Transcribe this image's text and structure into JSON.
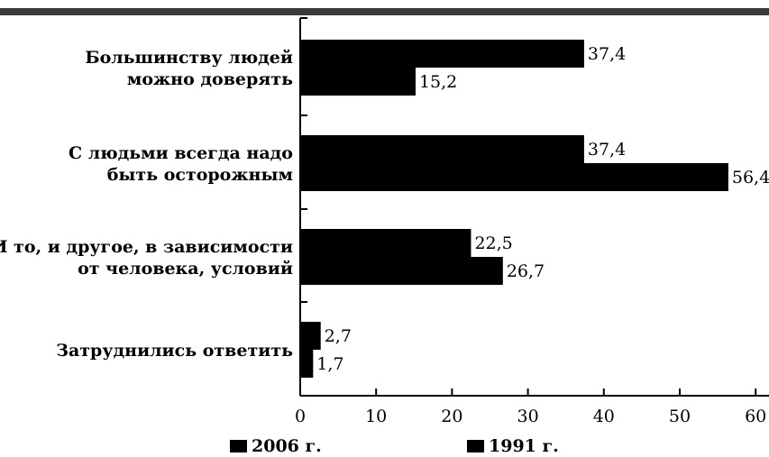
{
  "chart_data": {
    "type": "bar",
    "orientation": "horizontal",
    "categories": [
      [
        "Большинству людей",
        "можно доверять"
      ],
      [
        "С людьми всегда надо",
        "быть осторожным"
      ],
      [
        "И то, и другое, в зависимости",
        "от человека, условий"
      ],
      [
        "Затруднились ответить"
      ]
    ],
    "series": [
      {
        "name": "2006 г.",
        "values": [
          37.4,
          37.4,
          22.5,
          2.7
        ],
        "labels": [
          "37,4",
          "37,4",
          "22,5",
          "2,7"
        ],
        "color": "#000000"
      },
      {
        "name": "1991 г.",
        "values": [
          15.2,
          56.4,
          26.7,
          1.7
        ],
        "labels": [
          "15,2",
          "56,4",
          "26,7",
          "1,7"
        ],
        "color": "#000000"
      }
    ],
    "xlim": [
      0,
      60
    ],
    "xticks": [
      0,
      10,
      20,
      30,
      40,
      50,
      60
    ],
    "xtick_labels": [
      "0",
      "10",
      "20",
      "30",
      "40",
      "50",
      "60"
    ],
    "grid": false,
    "legend_position": "bottom"
  }
}
